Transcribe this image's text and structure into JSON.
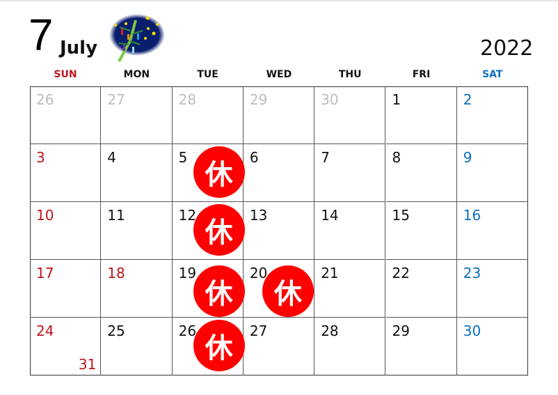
{
  "header": {
    "month_number": "7",
    "month_name": "July",
    "year": "2022"
  },
  "colors": {
    "sunday": "#c0141c",
    "saturday": "#0a6fbf",
    "other_month": "#bdbdbd",
    "weekday": "#111111",
    "closed_badge": "#ff0000"
  },
  "weekdays": [
    {
      "label": "SUN",
      "type": "sun"
    },
    {
      "label": "MON",
      "type": "day"
    },
    {
      "label": "TUE",
      "type": "day"
    },
    {
      "label": "WED",
      "type": "day"
    },
    {
      "label": "THU",
      "type": "day"
    },
    {
      "label": "FRI",
      "type": "day"
    },
    {
      "label": "SAT",
      "type": "sat"
    }
  ],
  "weeks": [
    [
      "26",
      "27",
      "28",
      "29",
      "30",
      "1",
      "2"
    ],
    [
      "3",
      "4",
      "5",
      "6",
      "7",
      "8",
      "9"
    ],
    [
      "10",
      "11",
      "12",
      "13",
      "14",
      "15",
      "16"
    ],
    [
      "17",
      "18",
      "19",
      "20",
      "21",
      "22",
      "23"
    ],
    [
      "24",
      "25",
      "26",
      "27",
      "28",
      "29",
      "30"
    ]
  ],
  "other_month_cells": [
    [
      0,
      0
    ],
    [
      0,
      1
    ],
    [
      0,
      2
    ],
    [
      0,
      3
    ],
    [
      0,
      4
    ]
  ],
  "holiday_cells": [
    [
      3,
      1
    ]
  ],
  "extra_date": {
    "label": "31",
    "week": 4,
    "day": 0
  },
  "closed_label": "休",
  "closed_days": [
    [
      1,
      2
    ],
    [
      2,
      2
    ],
    [
      3,
      2
    ],
    [
      3,
      3
    ],
    [
      4,
      2
    ]
  ],
  "illustration": "tanabata-bamboo-night-sky"
}
